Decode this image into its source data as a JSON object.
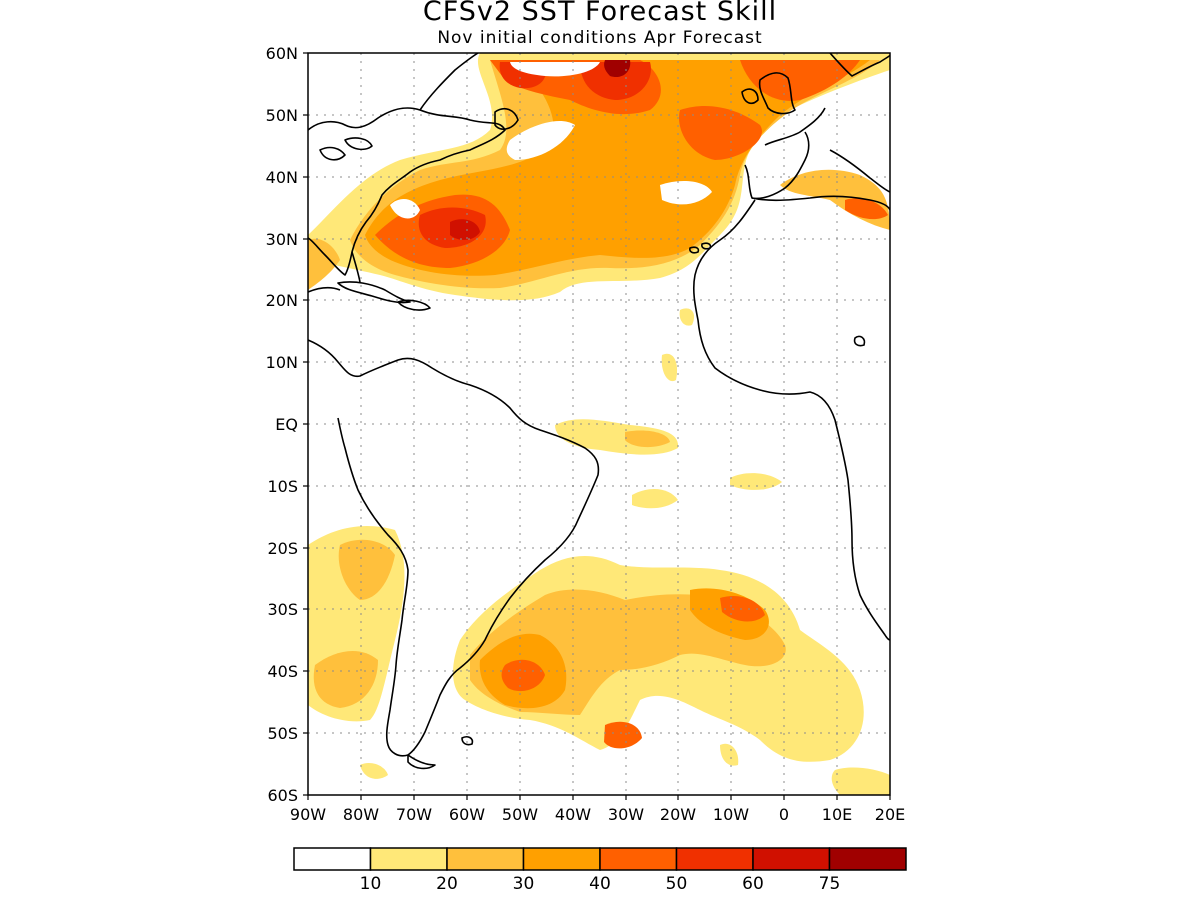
{
  "title": "CFSv2 SST Forecast Skill",
  "subtitle": "Nov initial conditions  Apr Forecast",
  "map": {
    "lon_range": [
      -90,
      20
    ],
    "lat_range": [
      -60,
      60
    ],
    "lat_labels": [
      "60N",
      "50N",
      "40N",
      "30N",
      "20N",
      "10N",
      "EQ",
      "10S",
      "20S",
      "30S",
      "40S",
      "50S",
      "60S"
    ],
    "lon_labels": [
      "90W",
      "80W",
      "70W",
      "60W",
      "50W",
      "40W",
      "30W",
      "20W",
      "10W",
      "0",
      "10E",
      "20E"
    ],
    "gridlines": "dotted"
  },
  "colorbar": {
    "colors": [
      "#ffffff",
      "#ffe878",
      "#ffc03c",
      "#ffa000",
      "#ff6000",
      "#f03000",
      "#d01000",
      "#a00000"
    ],
    "labels": [
      "10",
      "20",
      "30",
      "40",
      "50",
      "60",
      "75"
    ]
  }
}
